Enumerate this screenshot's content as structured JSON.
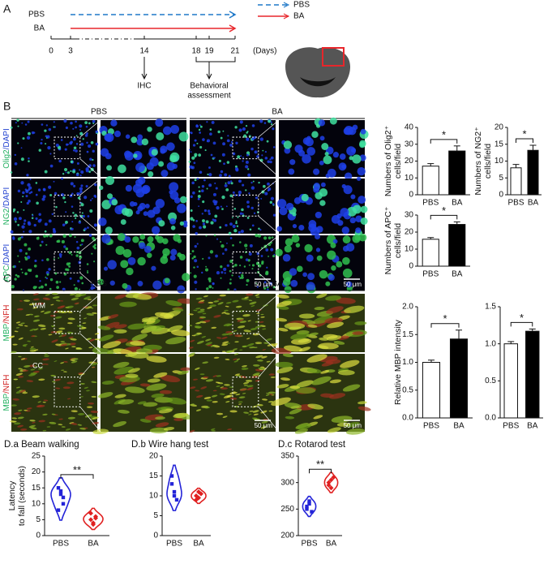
{
  "timeline": {
    "label": "A",
    "groups": [
      {
        "name": "PBS",
        "color": "#1f78c8"
      },
      {
        "name": "BA",
        "color": "#e8262b"
      }
    ],
    "days": [
      0,
      3,
      14,
      18,
      19,
      21
    ],
    "unit": "(Days)",
    "events": [
      {
        "label": [
          "IHC"
        ],
        "at": 14
      },
      {
        "label": [
          "Behavioral",
          "assessment"
        ],
        "at": 19,
        "span": [
          18,
          21
        ]
      }
    ]
  },
  "panel_B": {
    "label": "B",
    "groups": [
      "PBS",
      "BA"
    ],
    "rows": [
      [
        "Olig2",
        "/DAPI"
      ],
      [
        "NG2",
        "/DAPI"
      ],
      [
        "APC",
        "/DAPI"
      ]
    ],
    "scale_bar": "50 μm"
  },
  "panel_C": {
    "label": "C",
    "groups": [
      "PBS",
      "BA"
    ],
    "rows": [
      [
        "MBP",
        "/NFH"
      ],
      [
        "MBP",
        "/NFH"
      ]
    ],
    "regions": [
      "WM",
      "CC"
    ],
    "scale_bar": "50 μm"
  },
  "chart_data": [
    {
      "type": "bar",
      "ylabel": [
        "Numbers of Olig2⁺",
        "cells/field"
      ],
      "categories": [
        "PBS",
        "BA"
      ],
      "values": [
        17,
        26
      ],
      "errors": [
        1.5,
        3
      ],
      "colors": [
        "#ffffff",
        "#000000"
      ],
      "ylim": [
        0,
        40
      ],
      "yticks": [
        0,
        10,
        20,
        30,
        40
      ],
      "annotation": "*"
    },
    {
      "type": "bar",
      "ylabel": [
        "Numbers of NG2⁺",
        "cells/field"
      ],
      "categories": [
        "PBS",
        "BA"
      ],
      "values": [
        8,
        13.2
      ],
      "errors": [
        1,
        1.5
      ],
      "colors": [
        "#ffffff",
        "#000000"
      ],
      "ylim": [
        0,
        20
      ],
      "yticks": [
        0,
        5,
        10,
        15,
        20
      ],
      "annotation": "*"
    },
    {
      "type": "bar",
      "ylabel": [
        "Numbers of APC⁺",
        "cells/field"
      ],
      "categories": [
        "PBS",
        "BA"
      ],
      "values": [
        15.8,
        24.5
      ],
      "errors": [
        1,
        1.5
      ],
      "colors": [
        "#ffffff",
        "#000000"
      ],
      "ylim": [
        0,
        30
      ],
      "yticks": [
        0,
        10,
        20,
        30
      ],
      "annotation": "*"
    },
    {
      "type": "bar",
      "ylabel": [
        "Relative MBP intensity"
      ],
      "categories": [
        "PBS",
        "BA"
      ],
      "values": [
        1.0,
        1.42
      ],
      "errors": [
        0.04,
        0.16
      ],
      "colors": [
        "#ffffff",
        "#000000"
      ],
      "ylim": [
        0,
        2
      ],
      "yticks": [
        {
          "value": 0,
          "label": "0.0"
        },
        0.5,
        {
          "value": 1,
          "label": "1.0"
        },
        1.5,
        {
          "value": 2,
          "label": "2.0"
        }
      ],
      "annotation": "*"
    },
    {
      "type": "bar",
      "categories": [
        "PBS",
        "BA"
      ],
      "values": [
        1.0,
        1.17
      ],
      "errors": [
        0.03,
        0.03
      ],
      "colors": [
        "#ffffff",
        "#000000"
      ],
      "ylim": [
        0,
        1.5
      ],
      "yticks": [
        {
          "value": 0,
          "label": "0.0"
        },
        0.5,
        {
          "value": 1,
          "label": "1.0"
        },
        1.5
      ],
      "annotation": "*"
    },
    {
      "type": "violin",
      "title": "D.a Beam walking",
      "ylabel": [
        "Latency",
        "to fall (seconds)"
      ],
      "categories": [
        "PBS",
        "BA"
      ],
      "values": [
        [
          15,
          13,
          10,
          8,
          14,
          12
        ],
        [
          5,
          4,
          6,
          7,
          3.5,
          5.5
        ]
      ],
      "colors": [
        "#2323d8",
        "#e02020"
      ],
      "ylim": [
        0,
        25
      ],
      "yticks": [
        0,
        5,
        10,
        15,
        20,
        25
      ],
      "annotation": "**"
    },
    {
      "type": "violin",
      "title": "D.b Wire hang test",
      "categories": [
        "PBS",
        "BA"
      ],
      "values": [
        [
          13,
          11,
          9,
          15,
          10
        ],
        [
          10,
          9.5,
          10.5,
          9,
          11
        ]
      ],
      "colors": [
        "#2323d8",
        "#e02020"
      ],
      "ylim": [
        0,
        20
      ],
      "yticks": [
        0,
        5,
        10,
        15,
        20
      ]
    },
    {
      "type": "violin",
      "title": "D.c Rotarod test",
      "categories": [
        "PBS",
        "BA"
      ],
      "values": [
        [
          250,
          260,
          245,
          255,
          265
        ],
        [
          300,
          290,
          310,
          295,
          305
        ]
      ],
      "colors": [
        "#2323d8",
        "#e02020"
      ],
      "ylim": [
        200,
        350
      ],
      "yticks": [
        200,
        250,
        300,
        350
      ],
      "annotation": "**"
    }
  ]
}
